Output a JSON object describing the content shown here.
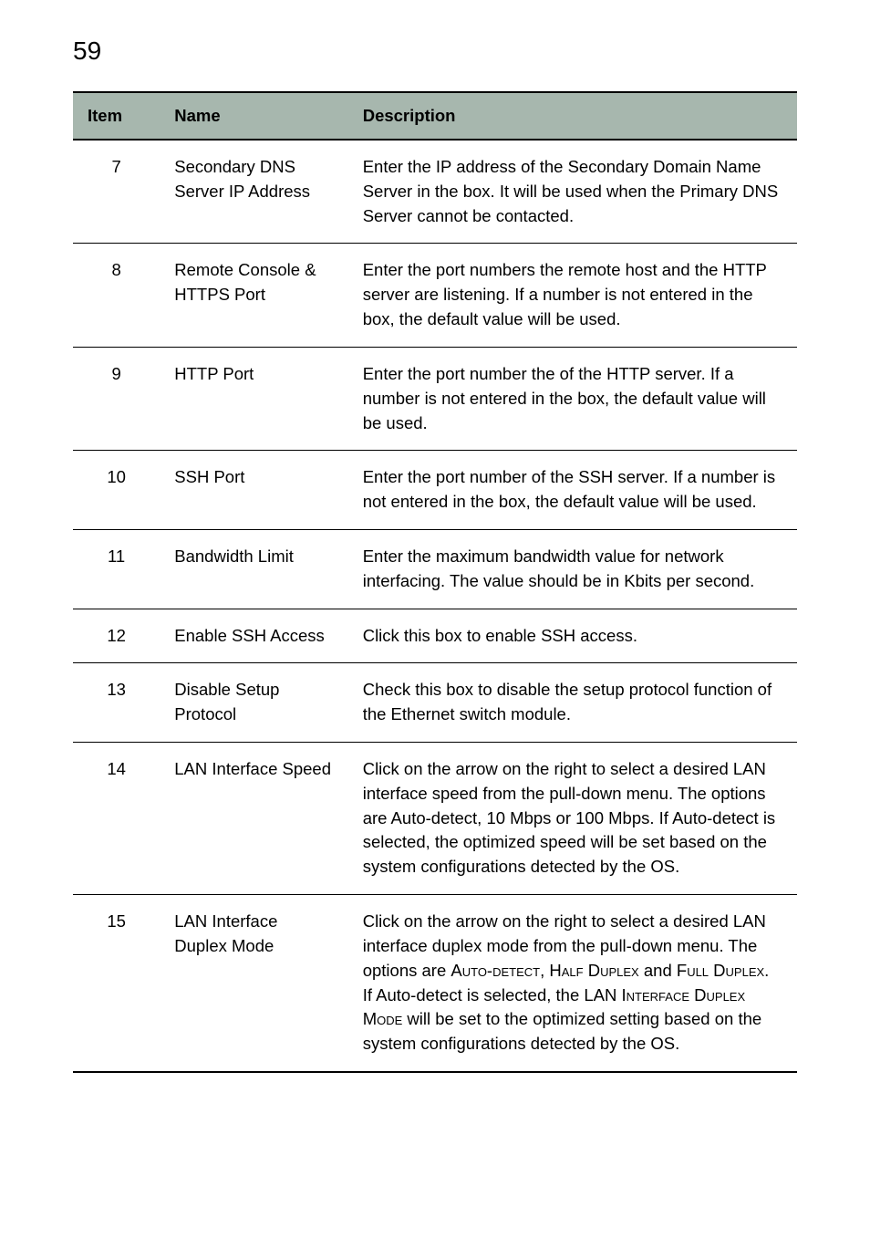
{
  "page_number": "59",
  "table": {
    "header_bg": "#a7b7ae",
    "columns": {
      "item": "Item",
      "name": "Name",
      "description": "Description"
    },
    "rows": [
      {
        "item": "7",
        "name": "Secondary DNS Server IP Address",
        "description": "Enter the IP address of the Secondary Domain Name Server in the box. It will be used when the Primary DNS Server cannot be contacted."
      },
      {
        "item": "8",
        "name": "Remote Console & HTTPS Port",
        "description": "Enter the port numbers the remote host and the HTTP server are listening. If a number is not entered in the box, the default value will be used."
      },
      {
        "item": "9",
        "name": "HTTP Port",
        "description": "Enter the port number the of the HTTP server. If a number is not entered in the box, the default value will be used."
      },
      {
        "item": "10",
        "name": "SSH Port",
        "description": "Enter the port number of the SSH server. If a number is not entered in the box, the default value will be used."
      },
      {
        "item": "11",
        "name": "Bandwidth Limit",
        "description": "Enter the maximum bandwidth value for network interfacing. The value should be in Kbits per second."
      },
      {
        "item": "12",
        "name": "Enable SSH Access",
        "description": "Click this box to enable SSH access."
      },
      {
        "item": "13",
        "name": "Disable Setup Protocol",
        "description": "Check this box to disable the setup protocol function of the Ethernet switch module."
      },
      {
        "item": "14",
        "name": "LAN Interface Speed",
        "description": "Click on the arrow on the right to select a desired LAN interface speed from the pull-down menu. The options are Auto-detect, 10 Mbps or 100 Mbps. If Auto-detect is selected, the optimized speed will be set based on the system configurations detected by the OS."
      },
      {
        "item": "15",
        "name": "LAN Interface Duplex Mode",
        "desc_parts": {
          "p1": "Click on the arrow on the right to select a desired LAN interface duplex mode from the pull-down menu. The options are ",
          "sc1": "Auto-detect",
          "p2": ", ",
          "sc2": "Half Duplex",
          "p3": " and ",
          "sc3": "Full Duplex",
          "p4": ". If Auto-detect is selected, the LAN ",
          "sc4": "Interface Duplex Mode",
          "p5": " will be set to the optimized setting based on the system configurations detected by the OS."
        }
      }
    ]
  }
}
